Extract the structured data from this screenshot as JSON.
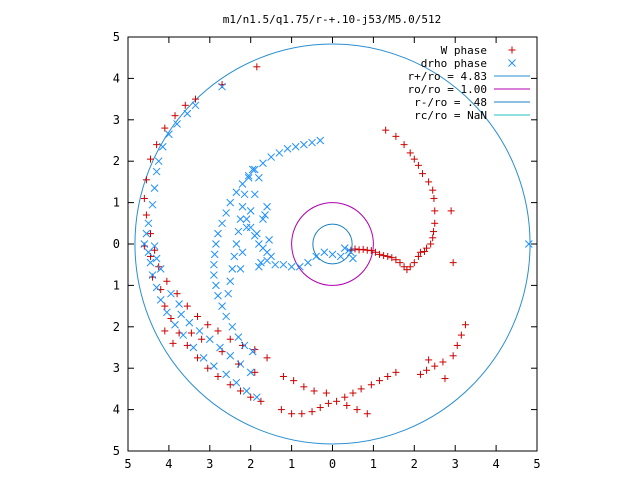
{
  "chart_data": {
    "type": "scatter",
    "title": "m1/n1.5/q1.75/r-+.10-j53/M5.0/512",
    "xlabel": "",
    "ylabel": "",
    "xlim": [
      -5,
      5
    ],
    "ylim": [
      -5,
      5
    ],
    "x_ticks": [
      -5,
      -4,
      -3,
      -2,
      -1,
      0,
      1,
      2,
      3,
      4,
      5
    ],
    "y_ticks": [
      -5,
      -4,
      -3,
      -2,
      -1,
      0,
      1,
      2,
      3,
      4,
      5
    ],
    "x_tick_labels": [
      "5",
      "4",
      "3",
      "2",
      "1",
      "0",
      "1",
      "2",
      "3",
      "4",
      "5"
    ],
    "y_tick_labels": [
      "5",
      "4",
      "3",
      "2",
      "1",
      "0",
      "1",
      "2",
      "3",
      "4",
      "5"
    ],
    "grid": false,
    "legend_position": "top-right",
    "colors": {
      "w_phase": "#cc0000",
      "drho_phase": "#1e90ff",
      "r_plus": "#2a8fd0",
      "r_o": "#b000b0",
      "r_minus": "#1a7fc0",
      "r_c": "#20c0c0"
    },
    "legend": [
      {
        "label": "W phase",
        "marker": "plus",
        "color_key": "w_phase"
      },
      {
        "label": "drho phase",
        "marker": "cross",
        "color_key": "drho_phase"
      },
      {
        "label": "r+/ro = 4.83",
        "marker": "line",
        "color_key": "r_plus"
      },
      {
        "label": "ro/ro = 1.00",
        "marker": "line",
        "color_key": "r_o"
      },
      {
        "label": "r-/ro = .48",
        "marker": "line",
        "color_key": "r_minus"
      },
      {
        "label": "rc/ro = NaN",
        "marker": "line",
        "color_key": "r_c"
      }
    ],
    "circles": [
      {
        "name": "r+/ro",
        "radius": 4.83,
        "color_key": "r_plus"
      },
      {
        "name": "ro/ro",
        "radius": 1.0,
        "color_key": "r_o"
      },
      {
        "name": "r-/ro",
        "radius": 0.48,
        "color_key": "r_minus"
      }
    ],
    "series": [
      {
        "name": "W phase",
        "marker": "plus",
        "color_key": "w_phase",
        "points": [
          [
            0.45,
            -0.15
          ],
          [
            0.55,
            -0.12
          ],
          [
            0.65,
            -0.14
          ],
          [
            0.75,
            -0.13
          ],
          [
            0.85,
            -0.15
          ],
          [
            0.95,
            -0.16
          ],
          [
            1.05,
            -0.2
          ],
          [
            1.15,
            -0.25
          ],
          [
            1.25,
            -0.28
          ],
          [
            1.35,
            -0.3
          ],
          [
            1.45,
            -0.33
          ],
          [
            1.55,
            -0.38
          ],
          [
            1.65,
            -0.45
          ],
          [
            1.75,
            -0.55
          ],
          [
            1.82,
            -0.62
          ],
          [
            1.9,
            -0.55
          ],
          [
            2.0,
            -0.45
          ],
          [
            2.1,
            -0.3
          ],
          [
            2.15,
            -0.2
          ],
          [
            2.25,
            -0.18
          ],
          [
            2.3,
            -0.1
          ],
          [
            2.4,
            0.0
          ],
          [
            2.45,
            0.15
          ],
          [
            2.47,
            0.3
          ],
          [
            2.5,
            0.5
          ],
          [
            2.5,
            0.8
          ],
          [
            2.48,
            1.1
          ],
          [
            2.45,
            1.3
          ],
          [
            2.35,
            1.5
          ],
          [
            2.2,
            1.7
          ],
          [
            2.1,
            1.9
          ],
          [
            2.0,
            2.05
          ],
          [
            1.9,
            2.2
          ],
          [
            1.75,
            2.4
          ],
          [
            1.55,
            2.6
          ],
          [
            1.3,
            2.75
          ],
          [
            2.9,
            0.8
          ],
          [
            2.95,
            -0.45
          ],
          [
            3.25,
            -1.95
          ],
          [
            3.15,
            -2.2
          ],
          [
            3.05,
            -2.45
          ],
          [
            2.95,
            -2.7
          ],
          [
            2.7,
            -2.85
          ],
          [
            2.5,
            -2.95
          ],
          [
            2.3,
            -3.05
          ],
          [
            2.15,
            -3.15
          ],
          [
            1.55,
            -3.1
          ],
          [
            1.35,
            -3.2
          ],
          [
            1.15,
            -3.3
          ],
          [
            0.95,
            -3.4
          ],
          [
            0.7,
            -3.5
          ],
          [
            0.5,
            -3.6
          ],
          [
            0.3,
            -3.7
          ],
          [
            0.1,
            -3.8
          ],
          [
            -0.1,
            -3.85
          ],
          [
            -0.3,
            -3.95
          ],
          [
            -0.5,
            -4.05
          ],
          [
            -0.75,
            -4.1
          ],
          [
            -1.0,
            -4.1
          ],
          [
            -1.25,
            -4.0
          ],
          [
            -0.15,
            -3.6
          ],
          [
            -0.45,
            -3.55
          ],
          [
            -0.7,
            -3.45
          ],
          [
            -0.95,
            -3.3
          ],
          [
            -1.2,
            -3.2
          ],
          [
            0.85,
            -4.1
          ],
          [
            0.6,
            -4.0
          ],
          [
            0.35,
            -3.9
          ],
          [
            2.35,
            -2.8
          ],
          [
            2.75,
            -3.25
          ],
          [
            -1.9,
            -2.55
          ],
          [
            -2.2,
            -2.45
          ],
          [
            -2.5,
            -2.3
          ],
          [
            -2.8,
            -2.1
          ],
          [
            -3.05,
            -1.95
          ],
          [
            -3.3,
            -1.75
          ],
          [
            -3.55,
            -1.5
          ],
          [
            -3.8,
            -1.2
          ],
          [
            -4.05,
            -0.9
          ],
          [
            -4.25,
            -0.55
          ],
          [
            -4.35,
            -0.15
          ],
          [
            -4.45,
            0.25
          ],
          [
            -4.55,
            0.7
          ],
          [
            -4.6,
            1.1
          ],
          [
            -4.55,
            1.55
          ],
          [
            -4.45,
            2.05
          ],
          [
            -4.3,
            2.4
          ],
          [
            -4.1,
            2.8
          ],
          [
            -3.85,
            3.1
          ],
          [
            -3.6,
            3.35
          ],
          [
            -3.35,
            3.5
          ],
          [
            -2.7,
            3.85
          ],
          [
            -1.85,
            4.28
          ],
          [
            -4.6,
            -0.05
          ],
          [
            -4.45,
            -0.3
          ],
          [
            -4.4,
            -0.8
          ],
          [
            -4.2,
            -1.1
          ],
          [
            -4.1,
            -1.5
          ],
          [
            -3.95,
            -1.8
          ],
          [
            -3.75,
            -2.15
          ],
          [
            -3.55,
            -2.45
          ],
          [
            -3.3,
            -2.75
          ],
          [
            -3.05,
            -3.0
          ],
          [
            -2.8,
            -3.2
          ],
          [
            -2.5,
            -3.4
          ],
          [
            -2.25,
            -3.55
          ],
          [
            -2.0,
            -3.7
          ],
          [
            -1.75,
            -3.8
          ],
          [
            -3.9,
            -2.4
          ],
          [
            -3.2,
            -2.3
          ],
          [
            -2.7,
            -2.6
          ],
          [
            -2.3,
            -2.9
          ],
          [
            -1.9,
            -3.1
          ],
          [
            -1.6,
            -2.75
          ],
          [
            -4.1,
            -2.1
          ],
          [
            -3.45,
            -2.15
          ]
        ]
      },
      {
        "name": "drho phase",
        "marker": "cross",
        "color_key": "drho_phase",
        "points": [
          [
            -0.3,
            2.5
          ],
          [
            -0.5,
            2.45
          ],
          [
            -0.7,
            2.4
          ],
          [
            -0.9,
            2.35
          ],
          [
            -1.1,
            2.3
          ],
          [
            -1.3,
            2.2
          ],
          [
            -1.5,
            2.1
          ],
          [
            -1.7,
            1.95
          ],
          [
            -1.9,
            1.8
          ],
          [
            -2.05,
            1.65
          ],
          [
            -2.2,
            1.45
          ],
          [
            -2.35,
            1.25
          ],
          [
            -2.5,
            1.0
          ],
          [
            -2.6,
            0.75
          ],
          [
            -2.7,
            0.5
          ],
          [
            -2.8,
            0.25
          ],
          [
            -2.85,
            0.0
          ],
          [
            -2.88,
            -0.25
          ],
          [
            -2.9,
            -0.5
          ],
          [
            -2.9,
            -0.75
          ],
          [
            -2.85,
            -1.0
          ],
          [
            -2.8,
            -1.25
          ],
          [
            -2.7,
            -1.5
          ],
          [
            -2.6,
            -1.75
          ],
          [
            -2.45,
            -2.0
          ],
          [
            -2.3,
            -2.25
          ],
          [
            -2.15,
            -2.45
          ],
          [
            -1.95,
            -2.6
          ],
          [
            -1.95,
            1.8
          ],
          [
            -2.05,
            1.6
          ],
          [
            -2.15,
            1.2
          ],
          [
            -2.2,
            0.9
          ],
          [
            -2.25,
            0.6
          ],
          [
            -2.3,
            0.3
          ],
          [
            -2.35,
            0.0
          ],
          [
            -2.4,
            -0.3
          ],
          [
            -2.45,
            -0.6
          ],
          [
            -2.5,
            -0.9
          ],
          [
            -2.55,
            -1.2
          ],
          [
            -1.8,
            1.6
          ],
          [
            -1.9,
            1.2
          ],
          [
            -2.0,
            0.8
          ],
          [
            -2.1,
            0.4
          ],
          [
            -1.6,
            0.9
          ],
          [
            -1.7,
            0.6
          ],
          [
            -2.2,
            -0.2
          ],
          [
            -2.25,
            -0.6
          ],
          [
            -2.1,
            0.6
          ],
          [
            -2.0,
            0.4
          ],
          [
            -1.9,
            0.2
          ],
          [
            -1.8,
            0.0
          ],
          [
            -1.7,
            -0.1
          ],
          [
            -1.6,
            -0.2
          ],
          [
            -1.5,
            -0.3
          ],
          [
            -1.4,
            -0.5
          ],
          [
            -1.2,
            -0.5
          ],
          [
            -1.0,
            -0.55
          ],
          [
            -0.8,
            -0.55
          ],
          [
            -0.6,
            -0.45
          ],
          [
            -0.4,
            -0.3
          ],
          [
            -0.2,
            -0.2
          ],
          [
            0.0,
            -0.25
          ],
          [
            0.2,
            -0.3
          ],
          [
            0.3,
            -0.1
          ],
          [
            0.4,
            -0.15
          ],
          [
            0.5,
            -0.35
          ],
          [
            0.45,
            -0.2
          ],
          [
            -1.55,
            0.1
          ],
          [
            -1.6,
            -0.4
          ],
          [
            -1.75,
            -0.45
          ],
          [
            -1.8,
            -0.55
          ],
          [
            -1.85,
            0.25
          ],
          [
            -1.65,
            0.7
          ],
          [
            -4.6,
            0.0
          ],
          [
            -4.5,
            -0.2
          ],
          [
            -4.45,
            -0.45
          ],
          [
            -4.4,
            -0.75
          ],
          [
            -4.3,
            -1.05
          ],
          [
            -4.2,
            -1.35
          ],
          [
            -4.05,
            -1.65
          ],
          [
            -3.85,
            -1.95
          ],
          [
            -3.65,
            -2.2
          ],
          [
            -3.4,
            -2.5
          ],
          [
            -3.15,
            -2.75
          ],
          [
            -2.9,
            -2.95
          ],
          [
            -2.6,
            -3.15
          ],
          [
            -2.35,
            -3.35
          ],
          [
            -2.1,
            -3.55
          ],
          [
            -1.85,
            -3.7
          ],
          [
            -4.55,
            0.25
          ],
          [
            -4.5,
            0.5
          ],
          [
            -4.4,
            0.95
          ],
          [
            -4.35,
            1.35
          ],
          [
            -4.3,
            1.75
          ],
          [
            -4.25,
            2.0
          ],
          [
            -4.15,
            2.35
          ],
          [
            -4.0,
            2.65
          ],
          [
            -3.8,
            2.9
          ],
          [
            -3.55,
            3.15
          ],
          [
            -3.35,
            3.35
          ],
          [
            -2.7,
            3.8
          ],
          [
            -3.7,
            -1.7
          ],
          [
            -3.5,
            -1.9
          ],
          [
            -3.25,
            -2.1
          ],
          [
            -3.0,
            -2.3
          ],
          [
            -2.75,
            -2.5
          ],
          [
            -2.5,
            -2.7
          ],
          [
            -2.25,
            -2.9
          ],
          [
            -2.0,
            -3.1
          ],
          [
            -4.35,
            -0.05
          ],
          [
            -4.3,
            -0.35
          ],
          [
            -4.2,
            -0.6
          ],
          [
            -3.95,
            -1.2
          ],
          [
            -3.75,
            -1.45
          ],
          [
            4.8,
            0.0
          ]
        ]
      }
    ]
  }
}
